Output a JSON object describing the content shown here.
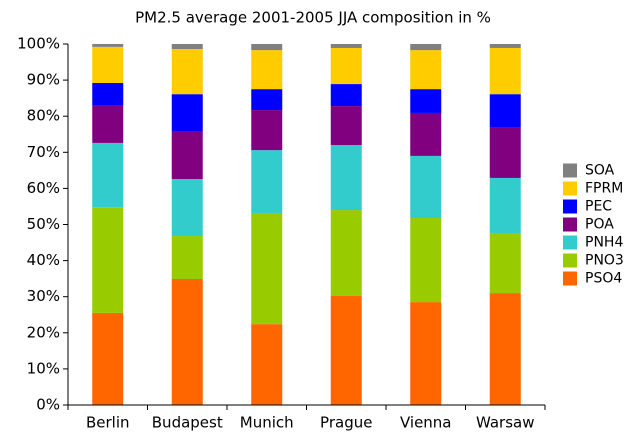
{
  "chart_data": {
    "type": "stacked_bar",
    "title": "PM2.5 average 2001-2005 JJA composition in %",
    "categories": [
      "Berlin",
      "Budapest",
      "Munich",
      "Prague",
      "Vienna",
      "Warsaw"
    ],
    "series": [
      {
        "name": "PSO4",
        "color": "#ff6600",
        "values": [
          25.5,
          34.9,
          22.4,
          30.2,
          28.5,
          31.0
        ]
      },
      {
        "name": "PNO3",
        "color": "#99cc00",
        "values": [
          29.3,
          11.9,
          30.8,
          23.8,
          23.3,
          16.4
        ]
      },
      {
        "name": "PNH4",
        "color": "#33cccc",
        "values": [
          17.8,
          15.8,
          17.4,
          18.0,
          17.2,
          15.5
        ]
      },
      {
        "name": "POA",
        "color": "#800080",
        "values": [
          10.5,
          13.3,
          11.1,
          10.8,
          11.9,
          14.1
        ]
      },
      {
        "name": "PEC",
        "color": "#0000ff",
        "values": [
          6.1,
          10.2,
          5.8,
          6.1,
          6.6,
          9.1
        ]
      },
      {
        "name": "FPRM",
        "color": "#ffcc00",
        "values": [
          10.0,
          12.5,
          10.8,
          10.0,
          10.8,
          12.8
        ]
      },
      {
        "name": "SOA",
        "color": "#808080",
        "values": [
          0.8,
          1.4,
          1.7,
          1.1,
          1.7,
          1.1
        ]
      }
    ],
    "ylim": [
      0,
      100
    ],
    "yticks": [
      {
        "value": 0,
        "label": "0%"
      },
      {
        "value": 10,
        "label": "10%"
      },
      {
        "value": 20,
        "label": "20%"
      },
      {
        "value": 30,
        "label": "30%"
      },
      {
        "value": 40,
        "label": "40%"
      },
      {
        "value": 50,
        "label": "50%"
      },
      {
        "value": 60,
        "label": "60%"
      },
      {
        "value": 70,
        "label": "70%"
      },
      {
        "value": 80,
        "label": "80%"
      },
      {
        "value": 90,
        "label": "90%"
      },
      {
        "value": 100,
        "label": "100%"
      }
    ],
    "grid": false,
    "legend": "right"
  }
}
